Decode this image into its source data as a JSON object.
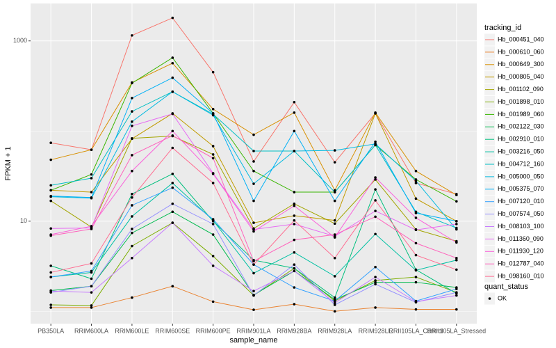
{
  "chart_data": {
    "type": "line",
    "x_label": "sample_name",
    "y_label": "FPKM + 1",
    "log_y": true,
    "grid": true,
    "panel_color": "#EBEBEB",
    "point_color": "#000000",
    "categories": [
      "PB350LA",
      "RRIM600LA",
      "RRIM600LE",
      "RRIM600SE",
      "RRIM600PE",
      "RRIM901LA",
      "RRIM928BA",
      "RRIM928LA",
      "RRIM928LE",
      "RRII105LA_Control",
      "RRII105LA_Stressed"
    ],
    "ylim": [
      0.73,
      2600
    ],
    "yticks": [
      10,
      1000
    ],
    "y_minor_ticks": [
      1,
      100
    ],
    "legend_title": "tracking_id",
    "legend_position": "right",
    "point_legend": {
      "title": "quant_status",
      "labels": [
        "OK"
      ]
    },
    "series": [
      {
        "name": "Hb_000451_040",
        "color": "#F8766D",
        "values": [
          74,
          62,
          1150,
          1800,
          450,
          46,
          209,
          45,
          157,
          26.5,
          20
        ]
      },
      {
        "name": "Hb_000610_060",
        "color": "#EA8331",
        "values": [
          1.1,
          1.1,
          1.42,
          1.9,
          1.28,
          1.04,
          1.2,
          1.0,
          1.1,
          1.05,
          1.05
        ]
      },
      {
        "name": "Hb_000649_300",
        "color": "#D89000",
        "values": [
          48,
          62,
          345,
          566,
          175,
          91,
          160,
          22,
          160,
          36,
          19.5
        ]
      },
      {
        "name": "Hb_000805_040",
        "color": "#C09B00",
        "values": [
          22,
          21,
          82,
          157,
          68,
          9.6,
          11.5,
          10.2,
          157,
          17.8,
          10
        ]
      },
      {
        "name": "Hb_001102_090",
        "color": "#A3A500",
        "values": [
          16.8,
          8.6,
          83,
          88,
          55,
          8.3,
          15.6,
          9.4,
          29,
          8.1,
          6.0
        ]
      },
      {
        "name": "Hb_001898_010",
        "color": "#7CAE00",
        "values": [
          1.18,
          1.16,
          5.3,
          9.6,
          4.1,
          1.5,
          3.0,
          1.3,
          2.2,
          2.4,
          1.62
        ]
      },
      {
        "name": "Hb_001989_060",
        "color": "#39B600",
        "values": [
          22,
          33,
          340,
          650,
          157,
          36,
          21,
          21,
          70,
          29,
          16.6
        ]
      },
      {
        "name": "Hb_002122_030",
        "color": "#00BB4E",
        "values": [
          1.7,
          1.9,
          7.4,
          12.7,
          7.1,
          1.52,
          2.8,
          1.35,
          2.1,
          2.1,
          1.84
        ]
      },
      {
        "name": "Hb_002910_010",
        "color": "#00BF7D",
        "values": [
          3.2,
          2.3,
          20,
          33.5,
          10,
          3.7,
          3.0,
          1.42,
          22.5,
          2.9,
          1.58
        ]
      },
      {
        "name": "Hb_003216_050",
        "color": "#00C1A3",
        "values": [
          2.4,
          2.7,
          11.3,
          26.5,
          10.2,
          2.65,
          4.5,
          2.45,
          7.2,
          2.85,
          3.7
        ]
      },
      {
        "name": "Hb_004712_160",
        "color": "#00BFC4",
        "values": [
          25,
          30,
          165,
          273,
          154,
          60,
          60,
          21,
          70,
          12.7,
          8.4
        ]
      },
      {
        "name": "Hb_005000_050",
        "color": "#00BAE0",
        "values": [
          18.7,
          18,
          127,
          273,
          150,
          26,
          60,
          61,
          72,
          28,
          8.1
        ]
      },
      {
        "name": "Hb_005375_070",
        "color": "#00B0F6",
        "values": [
          19,
          18.3,
          232,
          390,
          157,
          16.8,
          100,
          16.8,
          76,
          12.3,
          10
        ]
      },
      {
        "name": "Hb_007120_010",
        "color": "#35A2FF",
        "values": [
          2.4,
          2.8,
          15,
          23.5,
          10.5,
          3.3,
          1.84,
          1.3,
          3.1,
          1.3,
          1.77
        ]
      },
      {
        "name": "Hb_007574_050",
        "color": "#9590FF",
        "values": [
          1.62,
          1.9,
          8.2,
          15.6,
          9.3,
          1.5,
          3.3,
          1.18,
          2.0,
          1.26,
          1.62
        ]
      },
      {
        "name": "Hb_008103_100",
        "color": "#C77CFF",
        "values": [
          1.68,
          1.62,
          3.9,
          9.6,
          3.2,
          1.68,
          2.8,
          1.24,
          2.4,
          1.28,
          1.5
        ]
      },
      {
        "name": "Hb_011360_090",
        "color": "#E76BF3",
        "values": [
          8.3,
          8.4,
          114,
          155,
          34,
          8.1,
          9.3,
          6.8,
          13,
          8,
          9.3
        ]
      },
      {
        "name": "Hb_011930_120",
        "color": "#FA62DB",
        "values": [
          7.1,
          8.8,
          36,
          100,
          33.5,
          7.7,
          14.8,
          6.6,
          30.5,
          10.9,
          5.8
        ]
      },
      {
        "name": "Hb_012787_040",
        "color": "#FF62BC",
        "values": [
          6.9,
          8.2,
          54,
          89,
          50,
          3.6,
          6.2,
          7.1,
          11.2,
          5.7,
          3.9
        ]
      },
      {
        "name": "Hb_098160_010",
        "color": "#FF6C91",
        "values": [
          2.7,
          3.4,
          18.3,
          65,
          26.5,
          3.3,
          10.2,
          3.9,
          17,
          4.2,
          2.9
        ]
      }
    ]
  }
}
